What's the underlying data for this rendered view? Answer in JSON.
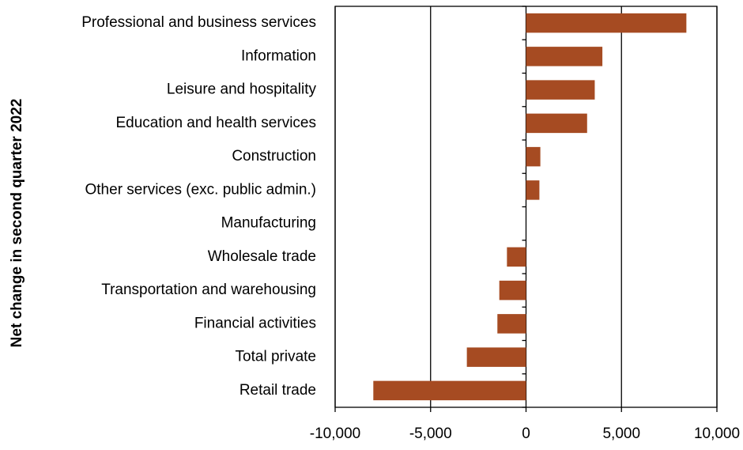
{
  "chart_data": {
    "type": "hbar",
    "ylabel": "Net change in second quarter 2022",
    "categories": [
      "Professional and business services",
      "Information",
      "Leisure and hospitality",
      "Education and health services",
      "Construction",
      "Other services (exc. public admin.)",
      "Manufacturing",
      "Wholesale trade",
      "Transportation and warehousing",
      "Financial activities",
      "Total private",
      "Retail trade"
    ],
    "values": [
      8400,
      4000,
      3600,
      3200,
      750,
      700,
      0,
      -1000,
      -1400,
      -1500,
      -3100,
      -8000
    ],
    "color": "#a64b22",
    "xlim": [
      -10000,
      10000
    ],
    "xticks": [
      {
        "value": -10000,
        "label": "-10,000"
      },
      {
        "value": -5000,
        "label": "-5,000"
      },
      0,
      {
        "value": 5000,
        "label": "5,000"
      },
      {
        "value": 10000,
        "label": "10,000"
      }
    ],
    "grid": true
  }
}
